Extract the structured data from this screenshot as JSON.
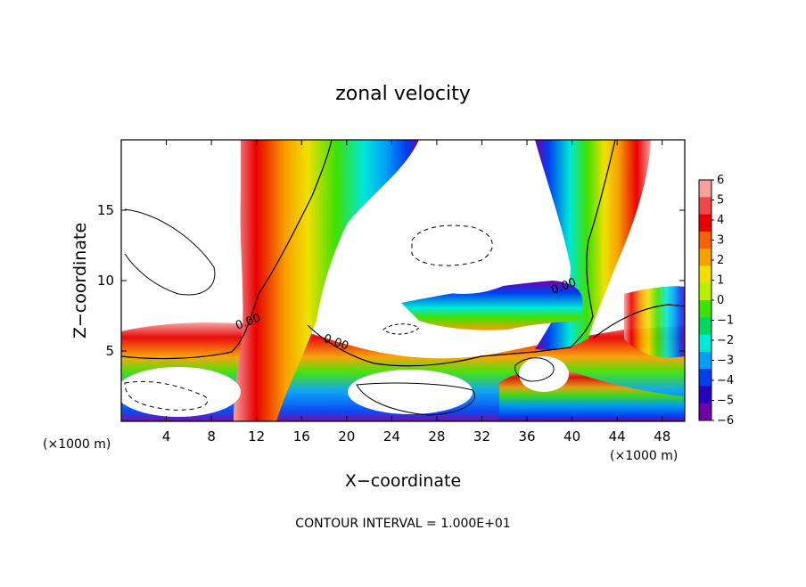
{
  "chart_data": {
    "type": "heatmap",
    "title": "zonal velocity",
    "xlabel": "X−coordinate",
    "ylabel": "Z−coordinate",
    "x_unit": "(×1000 m)",
    "y_unit": "(×1000 m)",
    "xlim": [
      0,
      50
    ],
    "ylim": [
      0,
      20
    ],
    "x_ticks": [
      4,
      8,
      12,
      16,
      20,
      24,
      28,
      32,
      36,
      40,
      44,
      48
    ],
    "y_ticks": [
      5,
      10,
      15
    ],
    "colorbar": {
      "min": -6,
      "max": 6,
      "labels": [
        "6",
        "5",
        "4",
        "3",
        "2",
        "1",
        "0",
        "−1",
        "−2",
        "−3",
        "−4",
        "−5",
        "−6"
      ],
      "colors": [
        "#f6a0a0",
        "#f04848",
        "#e80000",
        "#f86000",
        "#f8a000",
        "#f0e000",
        "#b8f000",
        "#40e000",
        "#00d860",
        "#00e8d8",
        "#00a0f8",
        "#0040f0",
        "#2800c0",
        "#7000a8"
      ]
    },
    "contour_labels": [
      "0.00",
      "0.00",
      "0.00"
    ],
    "footer": "CONTOUR INTERVAL = 1.000E+01"
  }
}
